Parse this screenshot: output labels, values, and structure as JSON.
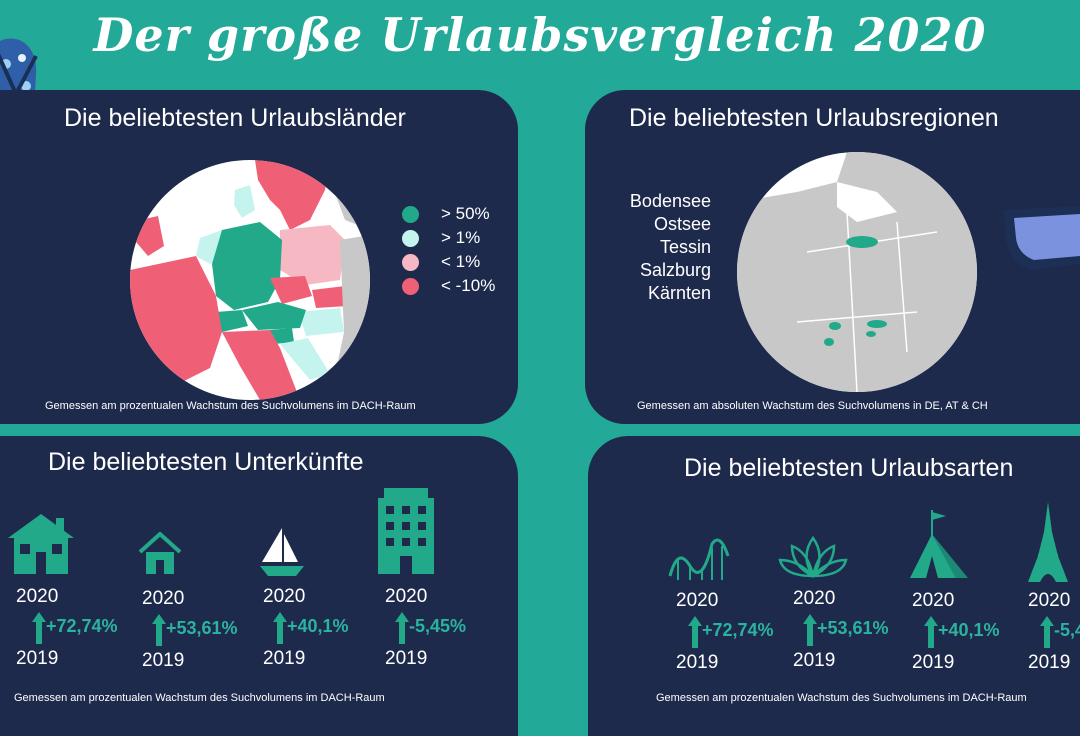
{
  "title": "Der große Urlaubsvergleich 2020",
  "colors": {
    "teal": "#22a997",
    "navy": "#1e2a4c",
    "gt50": "#22a98a",
    "gt1": "#c5f4ef",
    "lt1": "#f6b9c3",
    "ltm10": "#ef6077",
    "land": "#c8c8c8"
  },
  "countries": {
    "title": "Die beliebtesten Urlaubsländer",
    "legend": [
      {
        "label": "> 50%",
        "color": "#22a98a"
      },
      {
        "label": "> 1%",
        "color": "#c5f4ef"
      },
      {
        "label": "< 1%",
        "color": "#f6b9c3"
      },
      {
        "label": "< -10%",
        "color": "#ef6077"
      }
    ],
    "footnote": "Gemessen am prozentualen Wachstum des Suchvolumens im DACH-Raum"
  },
  "regions": {
    "title": "Die beliebtesten Urlaubsregionen",
    "items": [
      "Bodensee",
      "Ostsee",
      "Tessin",
      "Salzburg",
      "Kärnten"
    ],
    "footnote": "Gemessen am absoluten Wachstum des Suchvolumens in DE, AT & CH"
  },
  "accommodations": {
    "title": "Die beliebtesten Unterkünfte",
    "items": [
      {
        "icon": "house-icon",
        "year_top": "2020",
        "change": "+72,74%",
        "year_bottom": "2019"
      },
      {
        "icon": "small-house-icon",
        "year_top": "2020",
        "change": "+53,61%",
        "year_bottom": "2019"
      },
      {
        "icon": "sailboat-icon",
        "year_top": "2020",
        "change": "+40,1%",
        "year_bottom": "2019"
      },
      {
        "icon": "hotel-building-icon",
        "year_top": "2020",
        "change": "-5,45%",
        "year_bottom": "2019"
      }
    ],
    "footnote": "Gemessen am prozentualen Wachstum des Suchvolumens im DACH-Raum"
  },
  "types": {
    "title": "Die beliebtesten Urlaubsarten",
    "items": [
      {
        "icon": "rollercoaster-icon",
        "year_top": "2020",
        "change": "+72,74%",
        "year_bottom": "2019"
      },
      {
        "icon": "lotus-icon",
        "year_top": "2020",
        "change": "+53,61%",
        "year_bottom": "2019"
      },
      {
        "icon": "tent-icon",
        "year_top": "2020",
        "change": "+40,1%",
        "year_bottom": "2019"
      },
      {
        "icon": "eiffel-tower-icon",
        "year_top": "2020",
        "change": "-5,4",
        "year_bottom": "2019"
      }
    ],
    "footnote": "Gemessen am prozentualen Wachstum des Suchvolumens im DACH-Raum"
  }
}
